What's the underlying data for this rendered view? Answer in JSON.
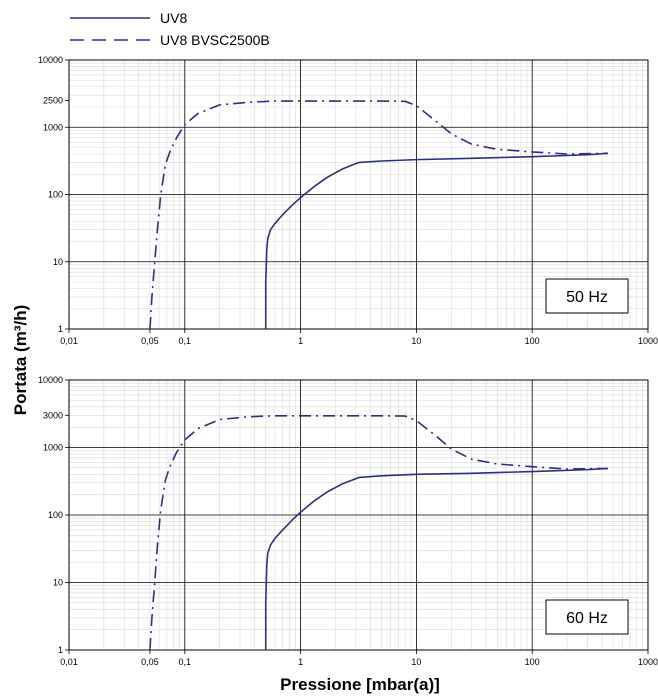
{
  "legend": [
    {
      "label": "UV8",
      "style": "solid"
    },
    {
      "label": "UV8 BVSC2500B",
      "style": "dashdot"
    }
  ],
  "colors": {
    "series": "#2c2f7d",
    "grid_major": "#000000",
    "grid_minor": "#d9d9d9"
  },
  "xlabel": "Pressione [mbar(a)]",
  "ylabel": "Portata (m³/h)",
  "chart_data": [
    {
      "type": "line",
      "annotation": "50 Hz",
      "xscale": "log",
      "yscale": "log",
      "xlim": [
        0.01,
        1000
      ],
      "ylim": [
        1,
        10000
      ],
      "xticks": [
        {
          "value": 0.01,
          "label": "0,01"
        },
        {
          "value": 0.05,
          "label": "0,05"
        },
        {
          "value": 0.1,
          "label": "0,1"
        },
        {
          "value": 1,
          "label": "1"
        },
        {
          "value": 10,
          "label": "10"
        },
        {
          "value": 100,
          "label": "100"
        },
        {
          "value": 1000,
          "label": "1000"
        }
      ],
      "yticks": [
        {
          "value": 1,
          "label": "1"
        },
        {
          "value": 10,
          "label": "10"
        },
        {
          "value": 100,
          "label": "100"
        },
        {
          "value": 1000,
          "label": "1000"
        },
        {
          "value": 2500,
          "label": "2500"
        },
        {
          "value": 10000,
          "label": "10000"
        }
      ],
      "grid": true,
      "series": [
        {
          "name": "UV8",
          "style": "solid",
          "x": [
            0.5,
            0.5,
            0.51,
            0.52,
            0.55,
            0.6,
            0.7,
            0.85,
            1.0,
            1.3,
            1.7,
            2.3,
            3.2,
            5,
            10,
            30,
            100,
            300,
            450
          ],
          "y": [
            1,
            5,
            15,
            22,
            30,
            37,
            50,
            70,
            90,
            130,
            180,
            240,
            300,
            315,
            330,
            345,
            365,
            390,
            410
          ]
        },
        {
          "name": "UV8 BVSC2500B",
          "style": "dashdot",
          "x": [
            0.05,
            0.052,
            0.055,
            0.058,
            0.062,
            0.068,
            0.075,
            0.085,
            0.1,
            0.13,
            0.2,
            0.35,
            0.6,
            1,
            2,
            5,
            8,
            10,
            15,
            20,
            30,
            50,
            100,
            200,
            450
          ],
          "y": [
            1,
            3,
            10,
            30,
            100,
            280,
            450,
            700,
            1100,
            1600,
            2150,
            2350,
            2450,
            2450,
            2450,
            2450,
            2430,
            2100,
            1200,
            800,
            560,
            470,
            430,
            400,
            410
          ]
        }
      ]
    },
    {
      "type": "line",
      "annotation": "60 Hz",
      "xscale": "log",
      "yscale": "log",
      "xlim": [
        0.01,
        1000
      ],
      "ylim": [
        1,
        10000
      ],
      "xticks": [
        {
          "value": 0.01,
          "label": "0,01"
        },
        {
          "value": 0.05,
          "label": "0,05"
        },
        {
          "value": 0.1,
          "label": "0,1"
        },
        {
          "value": 1,
          "label": "1"
        },
        {
          "value": 10,
          "label": "10"
        },
        {
          "value": 100,
          "label": "100"
        },
        {
          "value": 1000,
          "label": "1000"
        }
      ],
      "yticks": [
        {
          "value": 1,
          "label": "1"
        },
        {
          "value": 10,
          "label": "10"
        },
        {
          "value": 100,
          "label": "100"
        },
        {
          "value": 1000,
          "label": "1000"
        },
        {
          "value": 3000,
          "label": "3000"
        },
        {
          "value": 10000,
          "label": "10000"
        }
      ],
      "grid": true,
      "series": [
        {
          "name": "UV8",
          "style": "solid",
          "x": [
            0.5,
            0.5,
            0.51,
            0.52,
            0.55,
            0.6,
            0.7,
            0.85,
            1.0,
            1.3,
            1.7,
            2.3,
            3.2,
            5,
            10,
            30,
            100,
            300,
            450
          ],
          "y": [
            1,
            5,
            18,
            27,
            36,
            45,
            60,
            85,
            110,
            160,
            220,
            290,
            360,
            380,
            400,
            415,
            440,
            470,
            490
          ]
        },
        {
          "name": "UV8 BVSC2500B",
          "style": "dashdot",
          "x": [
            0.05,
            0.052,
            0.055,
            0.058,
            0.062,
            0.068,
            0.075,
            0.085,
            0.1,
            0.13,
            0.2,
            0.35,
            0.6,
            1,
            2,
            5,
            8,
            10,
            15,
            20,
            30,
            50,
            100,
            200,
            450
          ],
          "y": [
            1,
            3,
            10,
            35,
            120,
            330,
            540,
            850,
            1300,
            1900,
            2600,
            2850,
            2950,
            2950,
            2950,
            2950,
            2920,
            2500,
            1450,
            950,
            670,
            570,
            520,
            480,
            490
          ]
        }
      ]
    }
  ]
}
